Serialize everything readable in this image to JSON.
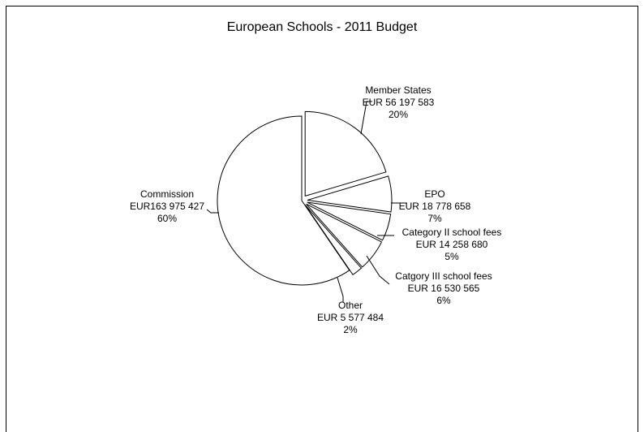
{
  "chart_data": {
    "type": "pie",
    "title": "European Schools - 2011 Budget",
    "slices": [
      {
        "name": "Member States",
        "value_label": "EUR 56 197 583",
        "percent_label": "20%",
        "value": 56197583,
        "exploded": true
      },
      {
        "name": "EPO",
        "value_label": "EUR 18 778 658",
        "percent_label": "7%",
        "value": 18778658,
        "exploded": true
      },
      {
        "name": "Category II school fees",
        "value_label": "EUR 14 258 680",
        "percent_label": "5%",
        "value": 14258680,
        "exploded": true
      },
      {
        "name": "Catgory III school fees",
        "value_label": "EUR 16 530 565",
        "percent_label": "6%",
        "value": 16530565,
        "exploded": true
      },
      {
        "name": "Other",
        "value_label": "EUR 5 577 484",
        "percent_label": "2%",
        "value": 5577484,
        "exploded": true
      },
      {
        "name": "Commission",
        "value_label": "EUR163 975 427",
        "percent_label": "60%",
        "value": 163975427,
        "exploded": false
      }
    ],
    "colors": {
      "fill": "#ffffff",
      "stroke": "#000000"
    },
    "legend": "none",
    "start_angle_deg": 0,
    "direction": "clockwise"
  }
}
